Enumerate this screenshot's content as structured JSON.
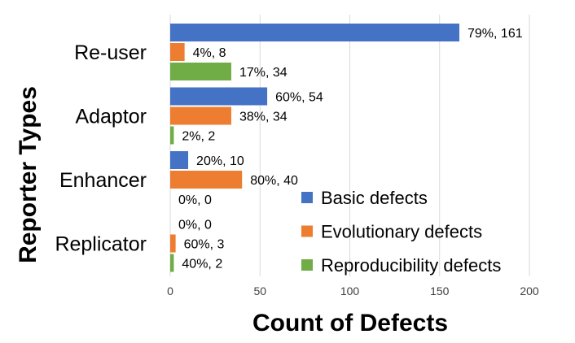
{
  "chart_data": {
    "type": "bar",
    "orientation": "horizontal",
    "title": "",
    "xlabel": "Count of Defects",
    "ylabel": "Reporter Types",
    "xlim": [
      0,
      200
    ],
    "xticks": [
      0,
      50,
      100,
      150,
      200
    ],
    "grid": true,
    "legend_position": "bottom-right",
    "categories": [
      "Re-user",
      "Adaptor",
      "Enhancer",
      "Replicator"
    ],
    "series": [
      {
        "name": "Basic defects",
        "color": "#4472c4",
        "values": [
          161,
          54,
          10,
          0
        ],
        "labels": [
          "79%, 161",
          "60%, 54",
          "20%, 10",
          "0%, 0"
        ]
      },
      {
        "name": "Evolutionary defects",
        "color": "#ed7d31",
        "values": [
          8,
          34,
          40,
          3
        ],
        "labels": [
          "4%, 8",
          "38%, 34",
          "80%, 40",
          "60%, 3"
        ]
      },
      {
        "name": "Reproducibility defects",
        "color": "#70ad47",
        "values": [
          34,
          2,
          0,
          2
        ],
        "labels": [
          "17%, 34",
          "2%, 2",
          "0%, 0",
          "40%, 2"
        ]
      }
    ]
  }
}
